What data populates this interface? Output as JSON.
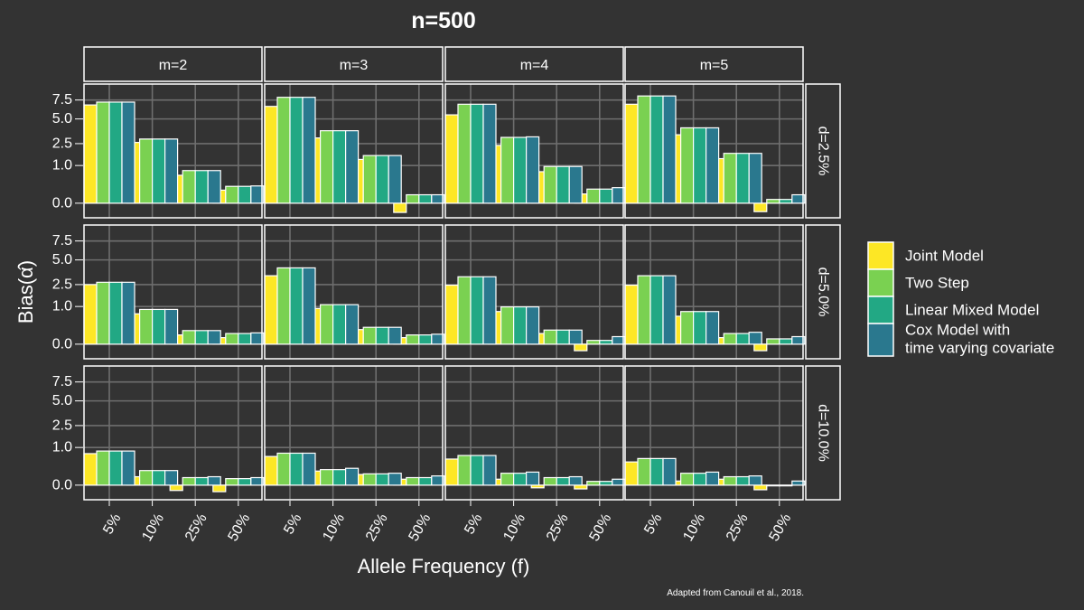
{
  "chart_data": {
    "type": "bar",
    "title": "n=500",
    "xlabel": "Allele Frequency (f)",
    "ylabel": "Bias(α̂)",
    "caption": "Adapted from Canouil et al., 2018.",
    "categories": [
      "5%",
      "10%",
      "25%",
      "50%"
    ],
    "col_facets": [
      "m=2",
      "m=3",
      "m=4",
      "m=5"
    ],
    "row_facets": [
      "d=2.5%",
      "d=5.0%",
      "d=10.0%"
    ],
    "y_ticks": [
      "0.0",
      "1.0",
      "2.5",
      "5.0",
      "7.5"
    ],
    "y_scale": "square-root (signed)",
    "ylim": [
      -0.15,
      10
    ],
    "grid": true,
    "legend_position": "right",
    "series_names": [
      "Joint Model",
      "Two Step",
      "Linear Mixed Model",
      "Cox Model with time varying covariate"
    ],
    "legend_lines": [
      [
        "Joint Model"
      ],
      [
        "Two Step"
      ],
      [
        "Linear Mixed Model"
      ],
      [
        "Cox Model with",
        "time varying covariate"
      ]
    ],
    "colors": [
      "#fde725",
      "#7ad151",
      "#22a884",
      "#2a788e"
    ],
    "panels": [
      {
        "row": "d=2.5%",
        "col": "m=2",
        "series": [
          {
            "name": "Joint Model",
            "values": [
              6.8,
              2.6,
              0.55,
              0.12
            ]
          },
          {
            "name": "Two Step",
            "values": [
              7.2,
              2.9,
              0.75,
              0.2
            ]
          },
          {
            "name": "Linear Mixed Model",
            "values": [
              7.2,
              2.9,
              0.75,
              0.2
            ]
          },
          {
            "name": "Cox Model with time varying covariate",
            "values": [
              7.2,
              2.9,
              0.75,
              0.21
            ]
          }
        ]
      },
      {
        "row": "d=2.5%",
        "col": "m=3",
        "series": [
          {
            "name": "Joint Model",
            "values": [
              6.6,
              3.0,
              1.35,
              -0.06
            ]
          },
          {
            "name": "Two Step",
            "values": [
              7.9,
              3.7,
              1.6,
              0.05
            ]
          },
          {
            "name": "Linear Mixed Model",
            "values": [
              7.9,
              3.7,
              1.6,
              0.05
            ]
          },
          {
            "name": "Cox Model with time varying covariate",
            "values": [
              7.9,
              3.7,
              1.6,
              0.05
            ]
          }
        ]
      },
      {
        "row": "d=2.5%",
        "col": "m=4",
        "series": [
          {
            "name": "Joint Model",
            "values": [
              5.5,
              2.35,
              0.7,
              0.06
            ]
          },
          {
            "name": "Two Step",
            "values": [
              6.9,
              3.05,
              0.95,
              0.14
            ]
          },
          {
            "name": "Linear Mixed Model",
            "values": [
              6.9,
              3.05,
              0.95,
              0.14
            ]
          },
          {
            "name": "Cox Model with time varying covariate",
            "values": [
              6.9,
              3.1,
              0.95,
              0.17
            ]
          }
        ]
      },
      {
        "row": "d=2.5%",
        "col": "m=5",
        "series": [
          {
            "name": "Joint Model",
            "values": [
              6.9,
              3.3,
              1.4,
              -0.05
            ]
          },
          {
            "name": "Two Step",
            "values": [
              8.1,
              4.0,
              1.75,
              0.01
            ]
          },
          {
            "name": "Linear Mixed Model",
            "values": [
              8.1,
              4.0,
              1.75,
              0.01
            ]
          },
          {
            "name": "Cox Model with time varying covariate",
            "values": [
              8.1,
              4.0,
              1.75,
              0.05
            ]
          }
        ]
      },
      {
        "row": "d=5.0%",
        "col": "m=2",
        "series": [
          {
            "name": "Joint Model",
            "values": [
              2.5,
              0.65,
              0.06,
              0.03
            ]
          },
          {
            "name": "Two Step",
            "values": [
              2.7,
              0.85,
              0.13,
              0.08
            ]
          },
          {
            "name": "Linear Mixed Model",
            "values": [
              2.7,
              0.85,
              0.13,
              0.08
            ]
          },
          {
            "name": "Cox Model with time varying covariate",
            "values": [
              2.7,
              0.85,
              0.13,
              0.09
            ]
          }
        ]
      },
      {
        "row": "d=5.0%",
        "col": "m=3",
        "series": [
          {
            "name": "Joint Model",
            "values": [
              3.3,
              0.9,
              0.15,
              0.03
            ]
          },
          {
            "name": "Two Step",
            "values": [
              4.1,
              1.1,
              0.2,
              0.06
            ]
          },
          {
            "name": "Linear Mixed Model",
            "values": [
              4.1,
              1.1,
              0.2,
              0.06
            ]
          },
          {
            "name": "Cox Model with time varying covariate",
            "values": [
              4.1,
              1.1,
              0.2,
              0.07
            ]
          }
        ]
      },
      {
        "row": "d=5.0%",
        "col": "m=4",
        "series": [
          {
            "name": "Joint Model",
            "values": [
              2.45,
              0.75,
              0.08,
              -0.03
            ]
          },
          {
            "name": "Two Step",
            "values": [
              3.2,
              0.98,
              0.14,
              0.01
            ]
          },
          {
            "name": "Linear Mixed Model",
            "values": [
              3.2,
              0.98,
              0.14,
              0.01
            ]
          },
          {
            "name": "Cox Model with time varying covariate",
            "values": [
              3.2,
              0.98,
              0.14,
              0.04
            ]
          }
        ]
      },
      {
        "row": "d=5.0%",
        "col": "m=5",
        "series": [
          {
            "name": "Joint Model",
            "values": [
              2.45,
              0.55,
              0.03,
              -0.03
            ]
          },
          {
            "name": "Two Step",
            "values": [
              3.3,
              0.75,
              0.08,
              0.02
            ]
          },
          {
            "name": "Linear Mixed Model",
            "values": [
              3.3,
              0.75,
              0.08,
              0.02
            ]
          },
          {
            "name": "Cox Model with time varying covariate",
            "values": [
              3.3,
              0.75,
              0.1,
              0.04
            ]
          }
        ]
      },
      {
        "row": "d=10.0%",
        "col": "m=2",
        "series": [
          {
            "name": "Joint Model",
            "values": [
              0.7,
              0.05,
              -0.02,
              -0.03
            ]
          },
          {
            "name": "Two Step",
            "values": [
              0.82,
              0.15,
              0.04,
              0.03
            ]
          },
          {
            "name": "Linear Mixed Model",
            "values": [
              0.82,
              0.15,
              0.04,
              0.03
            ]
          },
          {
            "name": "Cox Model with time varying covariate",
            "values": [
              0.82,
              0.15,
              0.05,
              0.04
            ]
          }
        ]
      },
      {
        "row": "d=10.0%",
        "col": "m=3",
        "series": [
          {
            "name": "Joint Model",
            "values": [
              0.58,
              0.14,
              0.08,
              0.025
            ]
          },
          {
            "name": "Two Step",
            "values": [
              0.72,
              0.17,
              0.09,
              0.04
            ]
          },
          {
            "name": "Linear Mixed Model",
            "values": [
              0.72,
              0.17,
              0.09,
              0.04
            ]
          },
          {
            "name": "Cox Model with time varying covariate",
            "values": [
              0.72,
              0.2,
              0.1,
              0.06
            ]
          }
        ]
      },
      {
        "row": "d=10.0%",
        "col": "m=4",
        "series": [
          {
            "name": "Joint Model",
            "values": [
              0.48,
              0.025,
              -0.005,
              -0.01
            ]
          },
          {
            "name": "Two Step",
            "values": [
              0.62,
              0.1,
              0.04,
              0.01
            ]
          },
          {
            "name": "Linear Mixed Model",
            "values": [
              0.62,
              0.1,
              0.04,
              0.01
            ]
          },
          {
            "name": "Cox Model with time varying covariate",
            "values": [
              0.62,
              0.12,
              0.05,
              0.025
            ]
          }
        ]
      },
      {
        "row": "d=10.0%",
        "col": "m=5",
        "series": [
          {
            "name": "Joint Model",
            "values": [
              0.38,
              0.012,
              0.025,
              -0.015
            ]
          },
          {
            "name": "Two Step",
            "values": [
              0.5,
              0.1,
              0.05,
              0.0
            ]
          },
          {
            "name": "Linear Mixed Model",
            "values": [
              0.5,
              0.1,
              0.05,
              0.0
            ]
          },
          {
            "name": "Cox Model with time varying covariate",
            "values": [
              0.5,
              0.12,
              0.06,
              0.012
            ]
          }
        ]
      }
    ]
  }
}
